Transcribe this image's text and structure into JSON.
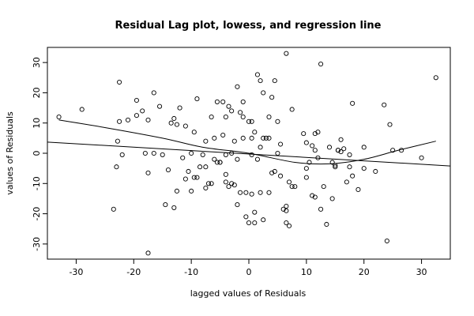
{
  "chart_data": {
    "type": "scatter",
    "title": "Residual Lag plot, lowess, and regression line",
    "xlabel": "lagged values of Residuals",
    "ylabel": "values of Residuals",
    "xlim": [
      -35,
      35
    ],
    "ylim": [
      -35,
      35
    ],
    "x_ticks": [
      -30,
      -20,
      -10,
      0,
      10,
      20,
      30
    ],
    "y_ticks": [
      -30,
      -20,
      -10,
      0,
      10,
      20,
      30
    ],
    "points": [
      [
        -33,
        12
      ],
      [
        -29,
        14.5
      ],
      [
        -23.5,
        -18.5
      ],
      [
        -23,
        -4.5
      ],
      [
        -22.8,
        4
      ],
      [
        -22.5,
        10.5
      ],
      [
        -22.5,
        23.5
      ],
      [
        -22,
        -0.5
      ],
      [
        -21,
        11
      ],
      [
        -19.5,
        12.5
      ],
      [
        -19.5,
        17.5
      ],
      [
        -18.5,
        14
      ],
      [
        -18,
        0
      ],
      [
        -17.5,
        -6.5
      ],
      [
        -17.5,
        11
      ],
      [
        -17.5,
        -33
      ],
      [
        -16.5,
        20
      ],
      [
        -16.5,
        0
      ],
      [
        -15.5,
        15.5
      ],
      [
        -15,
        -0.5
      ],
      [
        -14.5,
        -17
      ],
      [
        -14,
        -5.5
      ],
      [
        -13.5,
        10
      ],
      [
        -13,
        -18
      ],
      [
        -13,
        11.5
      ],
      [
        -12.5,
        -12.5
      ],
      [
        -12.5,
        9.5
      ],
      [
        -12,
        15
      ],
      [
        -11.5,
        -1.5
      ],
      [
        -11,
        -8.5
      ],
      [
        -11,
        9
      ],
      [
        -10.5,
        -6
      ],
      [
        -10,
        0
      ],
      [
        -10,
        -12.5
      ],
      [
        -9.5,
        -8
      ],
      [
        -9.5,
        7
      ],
      [
        -9,
        -8
      ],
      [
        -9,
        18
      ],
      [
        -8.5,
        -4.5
      ],
      [
        -8,
        -0.5
      ],
      [
        -7.5,
        -11.5
      ],
      [
        -7.5,
        -4.5
      ],
      [
        -7.5,
        4
      ],
      [
        -7,
        -10
      ],
      [
        -6.5,
        -10
      ],
      [
        -6.5,
        12
      ],
      [
        -6,
        5
      ],
      [
        -6,
        -2
      ],
      [
        -5.5,
        -3
      ],
      [
        -5.5,
        17
      ],
      [
        -5,
        -3
      ],
      [
        -5,
        -3
      ],
      [
        -4.5,
        6
      ],
      [
        -4.5,
        17
      ],
      [
        -4,
        12
      ],
      [
        -4,
        -0.5
      ],
      [
        -4,
        -7
      ],
      [
        -4,
        -9.5
      ],
      [
        -3.5,
        15.5
      ],
      [
        -3.5,
        -11
      ],
      [
        -3,
        0
      ],
      [
        -3,
        -10
      ],
      [
        -3,
        14
      ],
      [
        -2.5,
        -10.5
      ],
      [
        -2.5,
        4
      ],
      [
        -2,
        22
      ],
      [
        -2,
        -2
      ],
      [
        -2,
        -17
      ],
      [
        -1.5,
        -13
      ],
      [
        -1.5,
        13.5
      ],
      [
        -1,
        17
      ],
      [
        -1,
        12
      ],
      [
        -1,
        5
      ],
      [
        -0.5,
        -21
      ],
      [
        -0.5,
        -13
      ],
      [
        0,
        10.5
      ],
      [
        0,
        -23
      ],
      [
        0.5,
        -0.5
      ],
      [
        0.5,
        -13.5
      ],
      [
        0.5,
        5
      ],
      [
        0.5,
        10.5
      ],
      [
        1,
        7
      ],
      [
        1,
        -19.5
      ],
      [
        1,
        -23
      ],
      [
        1.5,
        26
      ],
      [
        1.5,
        -2
      ],
      [
        2,
        24
      ],
      [
        2,
        2
      ],
      [
        2,
        -13
      ],
      [
        2.5,
        20
      ],
      [
        2.5,
        5
      ],
      [
        2.5,
        -22
      ],
      [
        3,
        5
      ],
      [
        3.5,
        12
      ],
      [
        3.5,
        -13
      ],
      [
        3.5,
        5
      ],
      [
        4,
        18.5
      ],
      [
        4,
        -6.5
      ],
      [
        4.5,
        24
      ],
      [
        4.5,
        -6
      ],
      [
        5,
        0
      ],
      [
        5,
        10.5
      ],
      [
        5.5,
        3
      ],
      [
        5.5,
        -7.5
      ],
      [
        6,
        -18.5
      ],
      [
        6.5,
        -19
      ],
      [
        6.5,
        -17.5
      ],
      [
        6.5,
        33
      ],
      [
        6.5,
        -23
      ],
      [
        7,
        -9.5
      ],
      [
        7,
        -24
      ],
      [
        7.5,
        14.5
      ],
      [
        7.5,
        -11
      ],
      [
        8,
        -11
      ],
      [
        9.5,
        6.5
      ],
      [
        10,
        3.5
      ],
      [
        10,
        -5
      ],
      [
        10,
        -8
      ],
      [
        10.5,
        -3
      ],
      [
        11,
        2.5
      ],
      [
        11,
        -14
      ],
      [
        11.5,
        -14.5
      ],
      [
        11.5,
        6.5
      ],
      [
        11.5,
        1
      ],
      [
        12,
        7
      ],
      [
        12,
        -1.5
      ],
      [
        12.5,
        29.5
      ],
      [
        12.5,
        -18.5
      ],
      [
        13,
        -11
      ],
      [
        13.5,
        -23.5
      ],
      [
        14,
        2
      ],
      [
        14.5,
        -15
      ],
      [
        14.5,
        -3
      ],
      [
        15,
        -4.5
      ],
      [
        15,
        -4
      ],
      [
        15.5,
        1
      ],
      [
        15.5,
        1
      ],
      [
        16,
        0.5
      ],
      [
        16,
        4.5
      ],
      [
        16.5,
        1.5
      ],
      [
        17,
        -9.5
      ],
      [
        17.5,
        -0.5
      ],
      [
        17.5,
        -4.5
      ],
      [
        18,
        -7.5
      ],
      [
        18,
        16.5
      ],
      [
        19,
        -12
      ],
      [
        20,
        -5
      ],
      [
        20,
        2
      ],
      [
        22,
        -6
      ],
      [
        23.5,
        16
      ],
      [
        24,
        -29
      ],
      [
        24.5,
        9.5
      ],
      [
        25,
        1
      ],
      [
        26.5,
        1
      ],
      [
        30,
        -1.5
      ],
      [
        32.5,
        25
      ]
    ],
    "lowess": [
      [
        -33,
        11
      ],
      [
        -25,
        8.5
      ],
      [
        -15,
        5
      ],
      [
        -8,
        2
      ],
      [
        0,
        0
      ],
      [
        8,
        -3
      ],
      [
        14,
        -3.5
      ],
      [
        20,
        -2
      ],
      [
        26,
        1
      ],
      [
        32.5,
        4
      ]
    ],
    "regression": [
      [
        -35,
        3.7
      ],
      [
        35,
        -4.2
      ]
    ]
  }
}
